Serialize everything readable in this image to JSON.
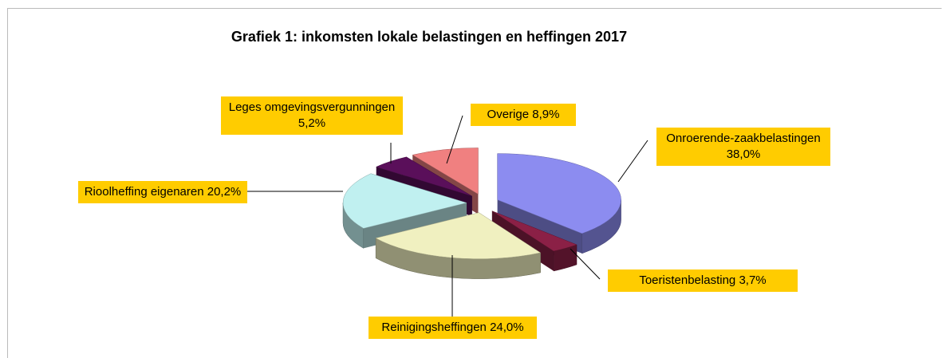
{
  "chart_data": {
    "type": "pie3d",
    "title": "Grafiek 1: inkomsten lokale belastingen en heffingen 2017",
    "categories": [
      "Onroerende-zaakbelastingen",
      "Toeristenbelasting",
      "Reinigingsheffingen",
      "Rioolheffing eigenaren",
      "Leges omgevingsvergunningen",
      "Overige"
    ],
    "values": [
      38.0,
      3.7,
      24.0,
      20.2,
      5.2,
      8.9
    ],
    "value_labels": [
      "38,0%",
      "3,7%",
      "24,0%",
      "20,2%",
      "5,2%",
      "8,9%"
    ],
    "colors": [
      "#8c8cf0",
      "#8b2046",
      "#f0f0c0",
      "#c0f0f0",
      "#5a0f5a",
      "#f08080"
    ]
  }
}
